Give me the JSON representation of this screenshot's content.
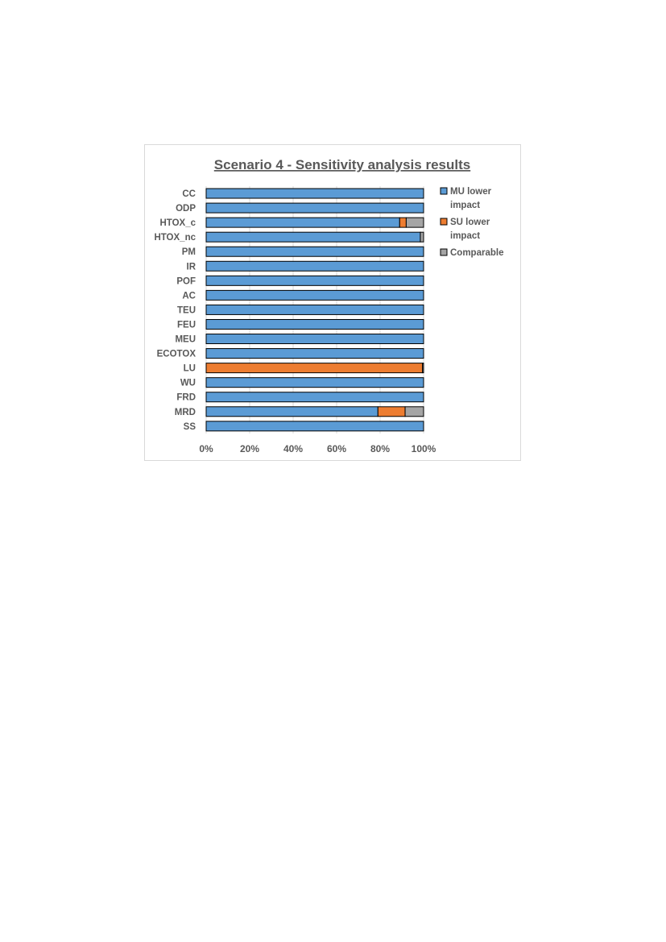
{
  "chart_data": {
    "type": "bar",
    "orientation": "horizontal",
    "stacked": "percent",
    "title": "Scenario 4 - Sensitivity analysis results",
    "categories": [
      "CC",
      "ODP",
      "HTOX_c",
      "HTOX_nc",
      "PM",
      "IR",
      "POF",
      "AC",
      "TEU",
      "FEU",
      "MEU",
      "ECOTOX",
      "LU",
      "WU",
      "FRD",
      "MRD",
      "SS"
    ],
    "series": [
      {
        "name": "MU lower impact",
        "color": "#5b9bd5",
        "values": [
          100,
          100,
          89,
          98.5,
          100,
          100,
          100,
          100,
          100,
          100,
          100,
          100,
          0,
          100,
          100,
          79,
          100
        ]
      },
      {
        "name": "SU lower impact",
        "color": "#ed7d31",
        "values": [
          0,
          0,
          3,
          0,
          0,
          0,
          0,
          0,
          0,
          0,
          0,
          0,
          99.5,
          0,
          0,
          12.5,
          0
        ]
      },
      {
        "name": "Comparable",
        "color": "#a5a5a5",
        "values": [
          0,
          0,
          8,
          1.5,
          0,
          0,
          0,
          0,
          0,
          0,
          0,
          0,
          0.5,
          0,
          0,
          8.5,
          0
        ]
      }
    ],
    "xlim": [
      0,
      100
    ],
    "x_ticks": [
      "0%",
      "20%",
      "40%",
      "60%",
      "80%",
      "100%"
    ],
    "x_tick_values": [
      0,
      20,
      40,
      60,
      80,
      100
    ],
    "grid": true,
    "legend_position": "right"
  }
}
